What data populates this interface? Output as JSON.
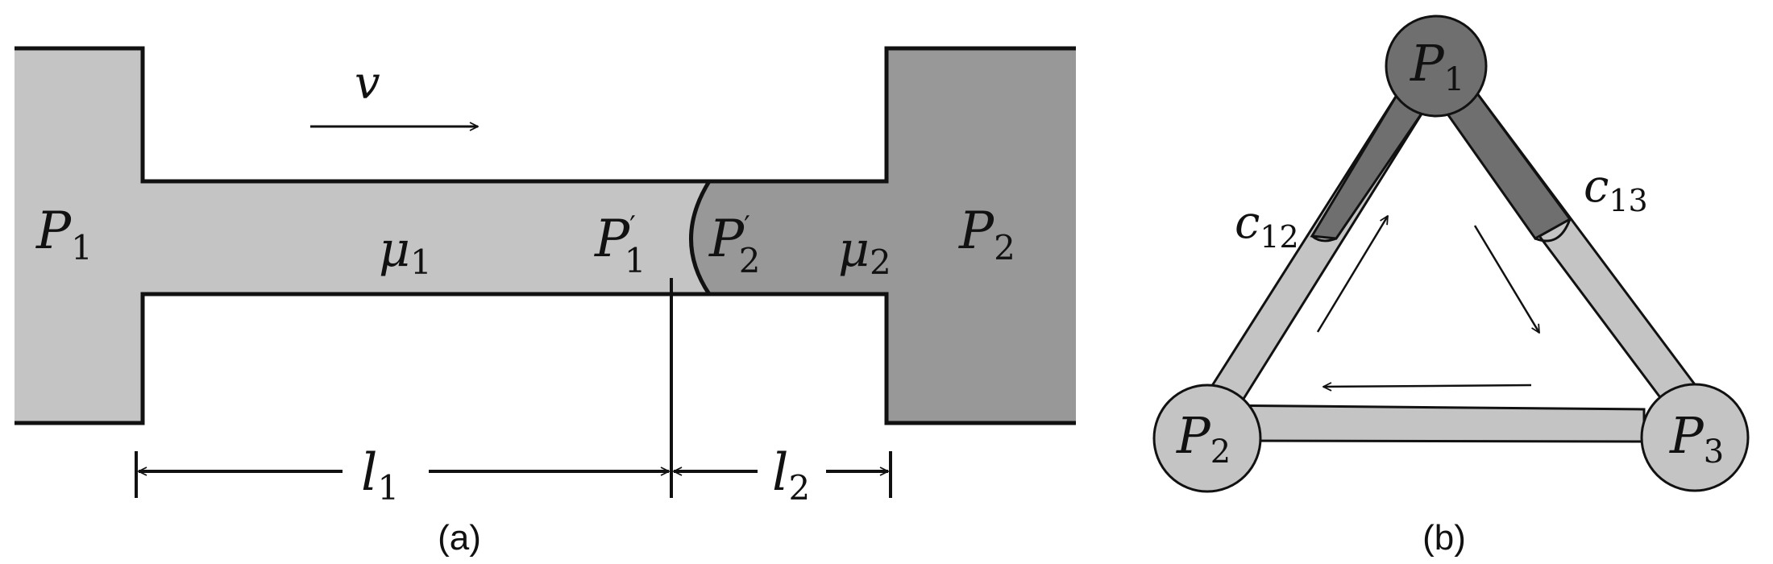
{
  "panel_a": {
    "caption": "(a)",
    "velocity": "v",
    "left_reservoir": {
      "symbol": "P",
      "sub": "1"
    },
    "right_reservoir": {
      "symbol": "P",
      "sub": "2"
    },
    "fluid_1": {
      "symbol": "μ",
      "sub": "1"
    },
    "fluid_2": {
      "symbol": "μ",
      "sub": "2"
    },
    "interface_left": {
      "symbol": "P",
      "sub": "1"
    },
    "interface_right": {
      "symbol": "P",
      "sub": "2"
    },
    "length_1": {
      "symbol": "l",
      "sub": "1"
    },
    "length_2": {
      "symbol": "l",
      "sub": "2"
    },
    "colors": {
      "fluid_1": "#c4c4c4",
      "fluid_2": "#989898"
    }
  },
  "panel_b": {
    "caption": "(b)",
    "nodes": [
      {
        "symbol": "P",
        "sub": "1"
      },
      {
        "symbol": "P",
        "sub": "2"
      },
      {
        "symbol": "P",
        "sub": "3"
      }
    ],
    "channel_12": {
      "symbol": "c",
      "sub": "12"
    },
    "channel_13": {
      "symbol": "c",
      "sub": "13"
    },
    "colors": {
      "light": "#c4c4c4",
      "dark": "#6f6f6f"
    }
  }
}
